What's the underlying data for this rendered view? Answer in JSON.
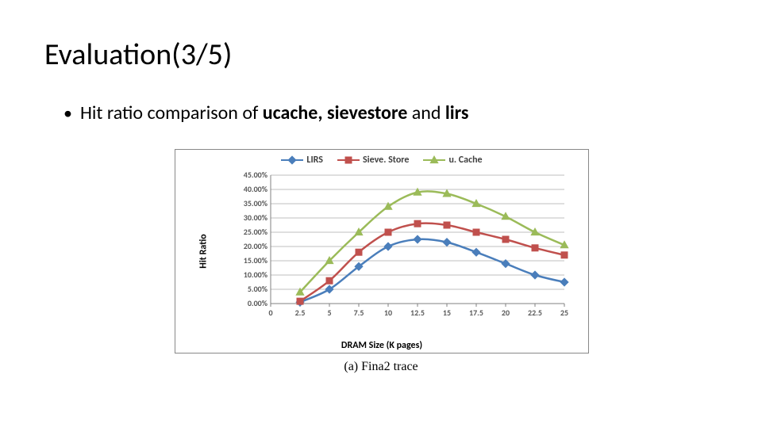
{
  "title": "Evaluation(3/5)",
  "bullet": {
    "prefix": "Hit ratio comparison of ",
    "b1": "ucache",
    "sep1": ", ",
    "b2": "sievestore",
    "mid": " and ",
    "b3": "lirs"
  },
  "caption": "(a)  Fina2 trace",
  "chart": {
    "type": "line",
    "background_color": "#ffffff",
    "border_color": "#888888",
    "grid_color": "#bfbfbf",
    "axis_color": "#808080",
    "tick_font_size": 10,
    "tick_font_weight": "bold",
    "label_font_size": 12,
    "label_font_weight": "bold",
    "x_label": "DRAM Size (K pages)",
    "y_label": "Hit Ratio",
    "x_min": 0,
    "x_max": 25,
    "x_tick_step": 2.5,
    "x_ticks": [
      "0",
      "2.5",
      "5",
      "7.5",
      "10",
      "12.5",
      "15",
      "17.5",
      "20",
      "22.5",
      "25"
    ],
    "y_min": 0,
    "y_max": 45,
    "y_tick_step": 5,
    "y_ticks": [
      "0.00%",
      "5.00%",
      "10.00%",
      "15.00%",
      "20.00%",
      "25.00%",
      "30.00%",
      "35.00%",
      "40.00%",
      "45.00%"
    ],
    "line_width": 2.5,
    "marker_size": 9,
    "legend": {
      "position": "top-center",
      "font_size": 12,
      "font_weight": "bold"
    },
    "series": [
      {
        "name": "LIRS",
        "color": "#4a7ebb",
        "marker": "diamond",
        "x": [
          2.5,
          5,
          7.5,
          10,
          12.5,
          15,
          17.5,
          20,
          22.5,
          25
        ],
        "y": [
          0.5,
          5,
          13,
          20,
          22.5,
          21.5,
          18,
          14,
          10,
          7.5
        ]
      },
      {
        "name": "Sieve. Store",
        "color": "#c0504d",
        "marker": "square",
        "x": [
          2.5,
          5,
          7.5,
          10,
          12.5,
          15,
          17.5,
          20,
          22.5,
          25
        ],
        "y": [
          0.8,
          8,
          18,
          25,
          28,
          27.5,
          25,
          22.5,
          19.5,
          17
        ]
      },
      {
        "name": "u. Cache",
        "color": "#9bbb59",
        "marker": "triangle",
        "x": [
          2.5,
          5,
          7.5,
          10,
          12.5,
          15,
          17.5,
          20,
          22.5,
          25
        ],
        "y": [
          4,
          15,
          25,
          34,
          39,
          38.5,
          35,
          30.5,
          25,
          20.5
        ]
      }
    ]
  }
}
